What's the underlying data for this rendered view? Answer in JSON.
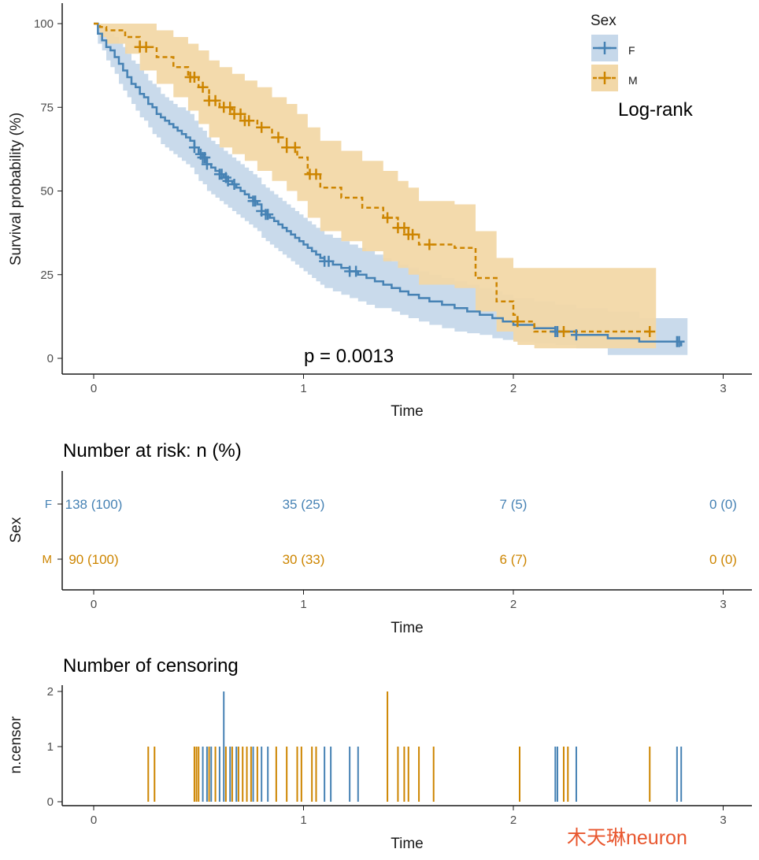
{
  "colors": {
    "F": "#4682b4",
    "M": "#cd8500",
    "F_band": "#c6d8ea",
    "M_band": "#f2d8a8",
    "axis": "#1a1a1a",
    "watermark": "#e8572f"
  },
  "chart_data": [
    {
      "type": "line",
      "subtype": "kaplan-meier",
      "title": "",
      "xlabel": "Time",
      "ylabel": "Survival probability (%)",
      "xlim": [
        -0.15,
        3.15
      ],
      "ylim": [
        -4,
        105
      ],
      "x_ticks": [
        "0",
        "1",
        "2",
        "3"
      ],
      "y_ticks": [
        "0",
        "25",
        "50",
        "75",
        "100"
      ],
      "legend": {
        "title": "Sex",
        "position": "top-right",
        "entries": [
          "F",
          "M"
        ]
      },
      "annotations": {
        "method": "Log-rank",
        "pvalue": "p = 0.0013"
      },
      "series": [
        {
          "name": "F",
          "style": "solid",
          "x": [
            0,
            0.02,
            0.04,
            0.06,
            0.08,
            0.1,
            0.12,
            0.14,
            0.16,
            0.18,
            0.2,
            0.22,
            0.24,
            0.26,
            0.28,
            0.3,
            0.32,
            0.34,
            0.36,
            0.38,
            0.4,
            0.42,
            0.44,
            0.46,
            0.48,
            0.5,
            0.52,
            0.54,
            0.56,
            0.58,
            0.6,
            0.62,
            0.64,
            0.66,
            0.68,
            0.7,
            0.72,
            0.74,
            0.76,
            0.78,
            0.8,
            0.82,
            0.84,
            0.86,
            0.88,
            0.9,
            0.92,
            0.94,
            0.96,
            0.98,
            1.0,
            1.02,
            1.04,
            1.06,
            1.08,
            1.1,
            1.14,
            1.18,
            1.22,
            1.26,
            1.3,
            1.34,
            1.38,
            1.42,
            1.46,
            1.5,
            1.55,
            1.6,
            1.66,
            1.72,
            1.78,
            1.84,
            1.9,
            1.95,
            2.0,
            2.1,
            2.2,
            2.3,
            2.45,
            2.6,
            2.8
          ],
          "y": [
            100,
            97,
            95,
            93,
            92,
            90,
            88,
            86,
            84,
            82,
            81,
            79,
            78,
            76,
            75,
            73,
            72,
            71,
            70,
            69,
            68,
            67,
            66,
            65,
            63,
            61,
            60,
            58,
            57,
            56,
            55,
            54,
            53,
            52,
            51,
            50,
            49,
            48,
            47,
            46,
            44,
            43,
            42,
            41,
            40,
            39,
            38,
            37,
            36,
            35,
            34,
            33,
            32,
            31,
            30,
            29,
            28,
            27,
            26,
            25,
            24,
            23,
            22,
            21,
            20,
            19,
            18,
            17,
            16,
            15,
            14,
            13,
            12,
            11,
            10,
            9,
            8,
            7,
            6,
            5,
            3.6
          ],
          "lower": [
            100,
            94,
            92,
            89,
            87,
            85,
            82,
            80,
            78,
            76,
            74,
            72,
            71,
            69,
            67,
            66,
            64,
            63,
            62,
            61,
            60,
            59,
            58,
            57,
            55,
            53,
            52,
            50,
            49,
            48,
            47,
            46,
            45,
            44,
            43,
            42,
            41,
            40,
            39,
            38,
            36,
            35,
            34,
            33,
            32,
            31,
            30,
            29,
            28,
            27,
            26,
            25,
            24,
            23,
            22,
            21,
            20,
            19,
            18,
            17,
            16,
            15,
            15,
            14,
            13,
            12,
            11,
            10,
            9,
            8,
            7.5,
            7,
            6,
            5.5,
            5,
            4.5,
            4,
            3,
            1,
            1,
            1
          ],
          "upper": [
            100,
            100,
            99,
            98,
            97,
            96,
            94,
            93,
            91,
            89,
            88,
            86,
            85,
            83,
            82,
            81,
            79,
            78,
            77,
            76,
            75,
            75,
            74,
            73,
            71,
            69,
            68,
            66,
            65,
            64,
            63,
            62,
            61,
            60,
            59,
            58,
            57,
            56,
            55,
            54,
            52,
            51,
            50,
            49,
            48,
            47,
            46,
            45,
            44,
            43,
            42,
            41,
            40,
            39,
            38,
            37,
            36,
            35,
            34,
            33,
            32,
            31,
            30,
            29,
            28,
            27,
            26,
            25,
            24,
            23,
            22,
            21,
            20,
            19,
            18,
            17,
            16,
            15,
            14,
            12,
            12
          ],
          "censor_x": [
            0.48,
            0.51,
            0.52,
            0.53,
            0.54,
            0.6,
            0.61,
            0.63,
            0.64,
            0.67,
            0.76,
            0.77,
            0.8,
            0.82,
            0.83,
            1.1,
            1.12,
            1.22,
            1.25,
            2.2,
            2.21,
            2.3,
            2.78,
            2.79
          ]
        },
        {
          "name": "M",
          "style": "dashed",
          "x": [
            0,
            0.03,
            0.06,
            0.15,
            0.22,
            0.3,
            0.38,
            0.45,
            0.5,
            0.55,
            0.6,
            0.66,
            0.72,
            0.78,
            0.85,
            0.92,
            0.97,
            1.02,
            1.08,
            1.18,
            1.28,
            1.38,
            1.45,
            1.5,
            1.55,
            1.62,
            1.72,
            1.82,
            1.92,
            2.0,
            2.02,
            2.1,
            2.2,
            2.65
          ],
          "y": [
            100,
            99,
            98,
            96,
            93,
            90,
            87,
            84,
            81,
            77,
            75,
            73,
            71,
            69,
            66,
            63,
            60,
            55,
            51,
            48,
            45,
            42,
            39,
            37,
            34,
            34,
            33,
            24,
            17,
            13,
            11,
            8,
            8,
            8
          ],
          "lower": [
            100,
            96,
            94,
            91,
            86,
            82,
            78,
            74,
            70,
            66,
            63,
            61,
            59,
            56,
            53,
            50,
            47,
            42,
            38,
            35,
            32,
            29,
            27,
            25,
            22,
            22,
            21,
            14,
            8,
            5,
            4,
            3,
            3,
            3
          ],
          "upper": [
            100,
            100,
            100,
            100,
            100,
            98,
            96,
            94,
            92,
            89,
            87,
            85,
            83,
            81,
            78,
            76,
            73,
            69,
            65,
            62,
            59,
            56,
            53,
            51,
            47,
            47,
            46,
            38,
            30,
            27,
            27,
            27,
            27,
            27
          ],
          "censor_x": [
            0.22,
            0.25,
            0.46,
            0.48,
            0.52,
            0.55,
            0.58,
            0.62,
            0.65,
            0.67,
            0.7,
            0.72,
            0.74,
            0.8,
            0.88,
            0.92,
            0.96,
            1.03,
            1.06,
            1.4,
            1.45,
            1.48,
            1.5,
            1.52,
            1.6,
            2.02,
            2.24,
            2.65
          ]
        }
      ]
    },
    {
      "type": "table",
      "title": "Number at risk: n (%)",
      "xlabel": "Time",
      "ylabel": "Sex",
      "xlim": [
        -0.15,
        3.15
      ],
      "x_ticks": [
        "0",
        "1",
        "2",
        "3"
      ],
      "time_points": [
        0,
        1,
        2,
        3
      ],
      "rows": [
        {
          "group": "F",
          "values": [
            "138 (100)",
            "35 (25)",
            "7 (5)",
            "0 (0)"
          ]
        },
        {
          "group": "M",
          "values": [
            "90 (100)",
            "30 (33)",
            "6 (7)",
            "0 (0)"
          ]
        }
      ]
    },
    {
      "type": "bar",
      "title": "Number of censoring",
      "xlabel": "Time",
      "ylabel": "n.censor",
      "xlim": [
        -0.15,
        3.15
      ],
      "ylim": [
        -0.07,
        2.1
      ],
      "x_ticks": [
        "0",
        "1",
        "2",
        "3"
      ],
      "y_ticks": [
        "0",
        "1",
        "2"
      ],
      "series": [
        {
          "name": "F",
          "x": [
            0.52,
            0.54,
            0.56,
            0.6,
            0.62,
            0.65,
            0.68,
            0.76,
            0.8,
            0.83,
            1.1,
            1.13,
            1.22,
            1.26,
            2.2,
            2.21,
            2.3,
            2.78,
            2.8
          ],
          "values": [
            1,
            1,
            1,
            1,
            2,
            1,
            1,
            1,
            1,
            1,
            1,
            1,
            1,
            1,
            1,
            1,
            1,
            1,
            1
          ]
        },
        {
          "name": "M",
          "x": [
            0.26,
            0.29,
            0.48,
            0.49,
            0.5,
            0.55,
            0.58,
            0.63,
            0.66,
            0.69,
            0.71,
            0.73,
            0.75,
            0.78,
            0.87,
            0.92,
            0.97,
            0.99,
            1.04,
            1.06,
            1.4,
            1.45,
            1.48,
            1.5,
            1.55,
            1.62,
            2.03,
            2.24,
            2.26,
            2.65
          ],
          "values": [
            1,
            1,
            1,
            1,
            1,
            1,
            1,
            1,
            1,
            1,
            1,
            1,
            1,
            1,
            1,
            1,
            1,
            1,
            1,
            1,
            2,
            1,
            1,
            1,
            1,
            1,
            1,
            1,
            1,
            1
          ]
        }
      ]
    }
  ],
  "watermark": "木天琳neuron"
}
